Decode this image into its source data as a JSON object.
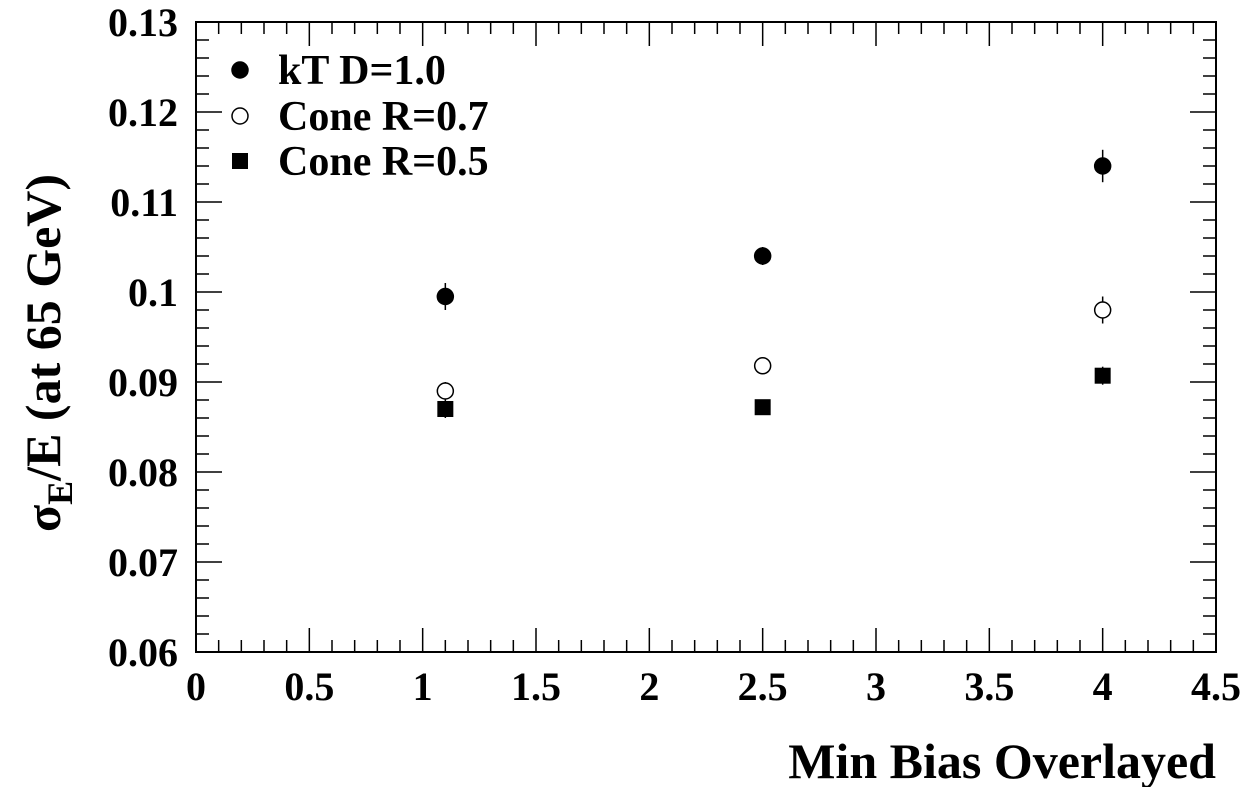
{
  "chart_data": {
    "type": "scatter",
    "title": "",
    "xlabel": "Min Bias Overlayed",
    "ylabel": {
      "main": "σ",
      "sub": "E",
      "rest": "/E (at 65 GeV)"
    },
    "xlim": [
      0,
      4.5
    ],
    "ylim": [
      0.06,
      0.13
    ],
    "x_ticks": [
      "0",
      "0.5",
      "1",
      "1.5",
      "2",
      "2.5",
      "3",
      "3.5",
      "4",
      "4.5"
    ],
    "y_ticks": [
      "0.06",
      "0.07",
      "0.08",
      "0.09",
      "0.1",
      "0.11",
      "0.12",
      "0.13"
    ],
    "grid": false,
    "legend_position": "top-left",
    "series": [
      {
        "name": "kT D=1.0",
        "marker": "filled-circle",
        "points": [
          {
            "x": 1.1,
            "y": 0.0995,
            "err": 0.0015
          },
          {
            "x": 2.5,
            "y": 0.104,
            "err": 0.001
          },
          {
            "x": 4.0,
            "y": 0.114,
            "err": 0.0018
          }
        ]
      },
      {
        "name": "Cone R=0.7",
        "marker": "open-circle",
        "points": [
          {
            "x": 1.1,
            "y": 0.089,
            "err": 0.001
          },
          {
            "x": 2.5,
            "y": 0.0918,
            "err": 0.0008
          },
          {
            "x": 4.0,
            "y": 0.098,
            "err": 0.0015
          }
        ]
      },
      {
        "name": "Cone R=0.5",
        "marker": "filled-square",
        "points": [
          {
            "x": 1.1,
            "y": 0.087,
            "err": 0.001
          },
          {
            "x": 2.5,
            "y": 0.0872,
            "err": 0.0008
          },
          {
            "x": 4.0,
            "y": 0.0907,
            "err": 0.001
          }
        ]
      }
    ]
  }
}
